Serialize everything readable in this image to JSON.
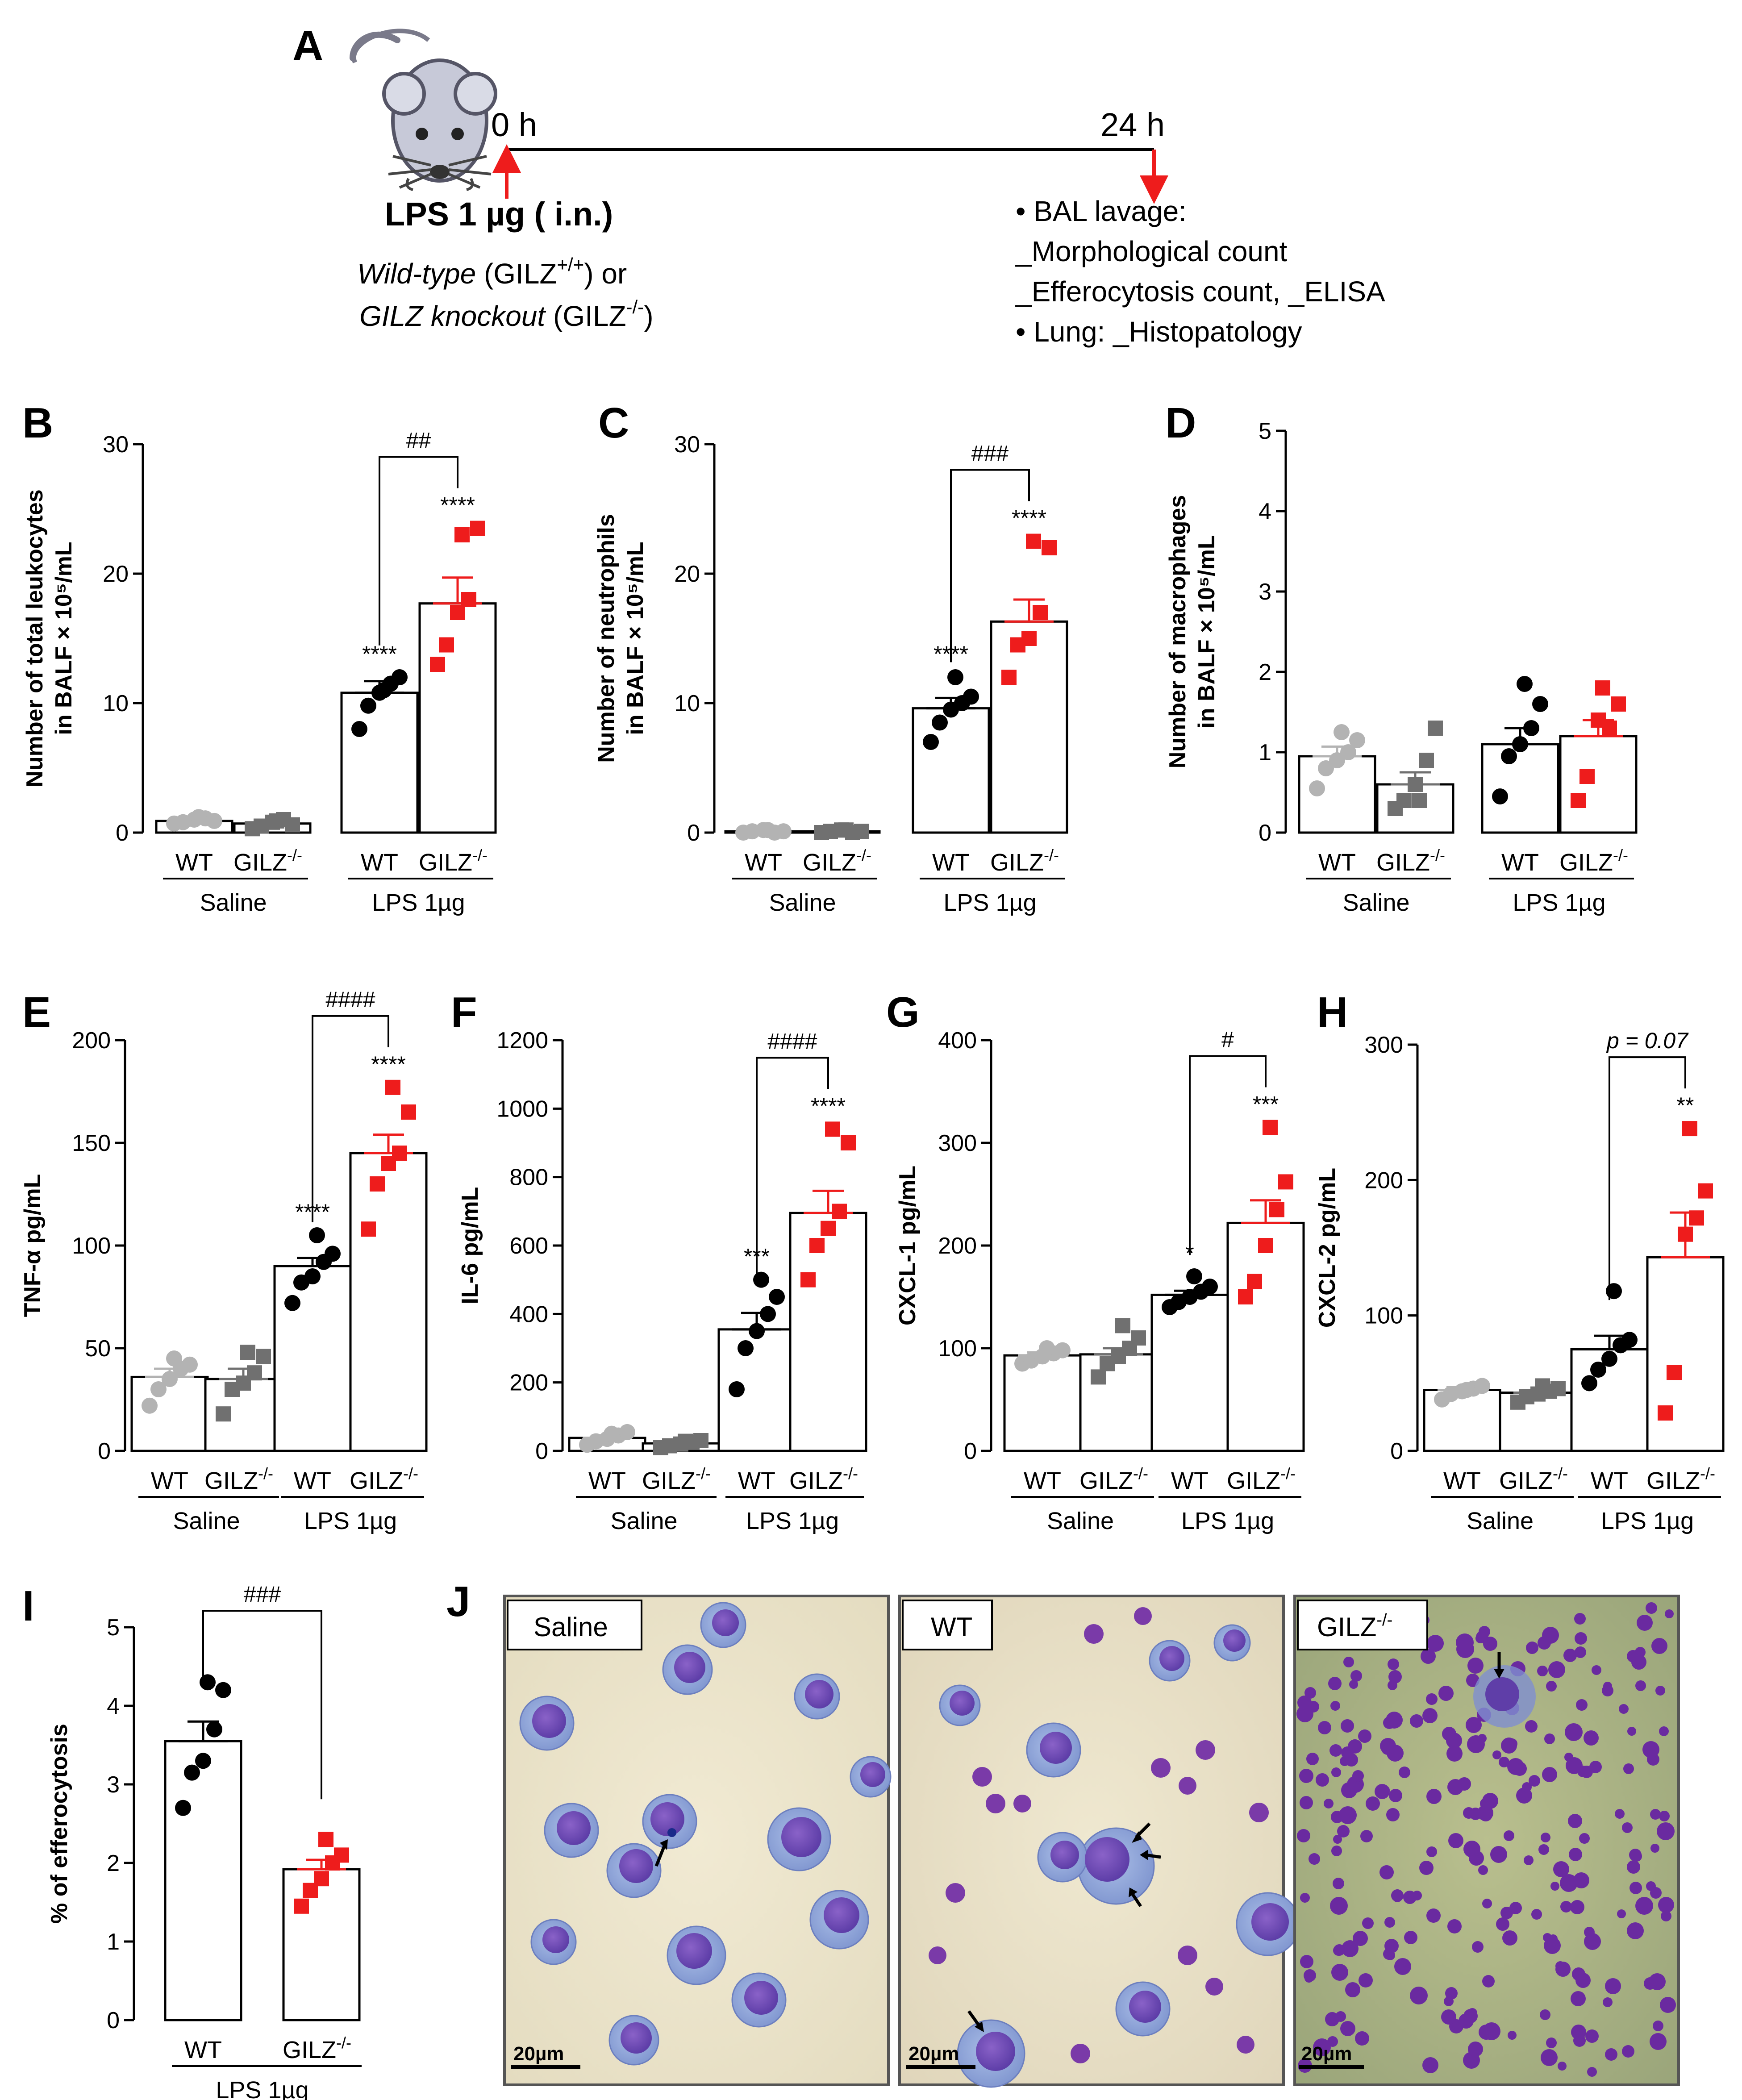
{
  "colors": {
    "wt_saline": "#b3b3b3",
    "gilz_saline": "#707070",
    "wt_lps": "#000000",
    "gilz_lps": "#ee1c1c",
    "axis": "#000000",
    "arrow_red": "#ee1c1c"
  },
  "panel_a": {
    "letter": "A",
    "t0": "0 h",
    "t24": "24 h",
    "treatment": "LPS 1 µg ( i.n.)",
    "wt_italic": "Wild-type",
    "wt_rest": " (GILZ",
    "wt_sup": "+/+",
    "wt_end": ") or",
    "ko_italic": "GILZ knockout",
    "ko_rest": " (GILZ",
    "ko_sup": "-/-",
    "ko_end": ")",
    "bullets": [
      "• BAL lavage:",
      "_Morphological count",
      "_Efferocytosis count, _ELISA",
      "• Lung: _Histopatology"
    ],
    "icon": "mouse-icon"
  },
  "groups": {
    "wt": "WT",
    "gilz": "GILZ",
    "gilz_sup": "-/-",
    "saline": "Saline",
    "lps": "LPS 1µg"
  },
  "chart_data": [
    {
      "id": "B",
      "type": "bar",
      "ylabel_line1": "Number of total leukocytes",
      "ylabel_line2": "in BALF × 10⁵/mL",
      "ylim": [
        0,
        30
      ],
      "ticks": [
        0,
        10,
        20,
        30
      ],
      "categories": [
        "WT Saline",
        "GILZ-/- Saline",
        "WT LPS 1µg",
        "GILZ-/- LPS 1µg"
      ],
      "means": [
        0.9,
        0.7,
        10.8,
        17.7
      ],
      "sem": [
        0.15,
        0.2,
        0.9,
        2.0
      ],
      "points": [
        [
          0.7,
          0.8,
          1.0,
          1.1,
          0.9,
          1.2
        ],
        [
          0.3,
          0.5,
          0.8,
          1.0,
          0.6,
          0.9
        ],
        [
          8.0,
          9.8,
          10.8,
          11.5,
          12.0,
          11.0
        ],
        [
          13.0,
          14.5,
          17.0,
          18.0,
          23.5,
          23.0
        ]
      ],
      "markers": [
        "circle",
        "square",
        "circle",
        "square"
      ],
      "stars": [
        "",
        "",
        "****",
        "****"
      ],
      "bracket_label": "##"
    },
    {
      "id": "C",
      "type": "bar",
      "ylabel_line1": "Number of neutrophils",
      "ylabel_line2": "in BALF × 10⁵/mL",
      "ylim": [
        0,
        30
      ],
      "ticks": [
        0,
        10,
        20,
        30
      ],
      "categories": [
        "WT Saline",
        "GILZ-/- Saline",
        "WT LPS 1µg",
        "GILZ-/- LPS 1µg"
      ],
      "means": [
        0.1,
        0.1,
        9.6,
        16.3
      ],
      "sem": [
        0.05,
        0.05,
        0.8,
        1.7
      ],
      "points": [
        [
          0.0,
          0.1,
          0.2,
          0.0,
          0.1,
          0.2
        ],
        [
          0.0,
          0.1,
          0.2,
          0.0,
          0.1,
          0.2
        ],
        [
          7.0,
          8.5,
          9.5,
          10.0,
          10.5,
          12.0
        ],
        [
          12.0,
          14.5,
          15.0,
          17.0,
          22.0,
          22.5
        ]
      ],
      "markers": [
        "circle",
        "square",
        "circle",
        "square"
      ],
      "stars": [
        "",
        "",
        "****",
        "****"
      ],
      "bracket_label": "###"
    },
    {
      "id": "D",
      "type": "bar",
      "ylabel_line1": "Number of macrophages",
      "ylabel_line2": "in BALF × 10⁵/mL",
      "ylim": [
        0,
        5
      ],
      "ticks": [
        0,
        1,
        2,
        3,
        4,
        5
      ],
      "categories": [
        "WT Saline",
        "GILZ-/- Saline",
        "WT LPS 1µg",
        "GILZ-/- LPS 1µg"
      ],
      "means": [
        0.95,
        0.6,
        1.1,
        1.2
      ],
      "sem": [
        0.12,
        0.15,
        0.2,
        0.2
      ],
      "points": [
        [
          0.55,
          0.8,
          0.9,
          1.0,
          1.15,
          1.25
        ],
        [
          0.3,
          0.4,
          0.6,
          0.9,
          1.3,
          0.4
        ],
        [
          0.45,
          0.95,
          1.1,
          1.3,
          1.6,
          1.85
        ],
        [
          0.4,
          0.7,
          1.4,
          1.3,
          1.6,
          1.8
        ]
      ],
      "markers": [
        "circle",
        "square",
        "circle",
        "square"
      ],
      "stars": [
        "",
        "",
        "",
        ""
      ],
      "bracket_label": ""
    },
    {
      "id": "E",
      "type": "bar",
      "ylabel_line1": "TNF-α pg/mL",
      "ylim": [
        0,
        200
      ],
      "ticks": [
        0,
        50,
        100,
        150,
        200
      ],
      "categories": [
        "WT Saline",
        "GILZ-/- Saline",
        "WT LPS 1µg",
        "GILZ-/- LPS 1µg"
      ],
      "means": [
        36,
        35,
        90,
        145
      ],
      "sem": [
        4,
        5,
        4,
        9
      ],
      "points": [
        [
          22,
          30,
          35,
          40,
          42,
          45
        ],
        [
          18,
          30,
          33,
          38,
          46,
          48
        ],
        [
          72,
          82,
          85,
          92,
          96,
          105
        ],
        [
          108,
          130,
          140,
          145,
          165,
          177
        ]
      ],
      "markers": [
        "circle",
        "square",
        "circle",
        "square"
      ],
      "stars": [
        "",
        "",
        "****",
        "****"
      ],
      "bracket_label": "####"
    },
    {
      "id": "F",
      "type": "bar",
      "ylabel_line1": "IL-6 pg/mL",
      "ylim": [
        0,
        1200
      ],
      "ticks": [
        0,
        200,
        400,
        600,
        800,
        1000,
        1200
      ],
      "categories": [
        "WT Saline",
        "GILZ-/- Saline",
        "WT LPS 1µg",
        "GILZ-/- LPS 1µg"
      ],
      "means": [
        38,
        22,
        355,
        695
      ],
      "sem": [
        8,
        5,
        48,
        65
      ],
      "points": [
        [
          18,
          28,
          35,
          45,
          55,
          50
        ],
        [
          10,
          15,
          20,
          25,
          30,
          28
        ],
        [
          180,
          300,
          350,
          400,
          450,
          500
        ],
        [
          500,
          600,
          650,
          700,
          900,
          940
        ]
      ],
      "markers": [
        "circle",
        "square",
        "circle",
        "square"
      ],
      "stars": [
        "",
        "",
        "***",
        "****"
      ],
      "bracket_label": "####"
    },
    {
      "id": "G",
      "type": "bar",
      "ylabel_line1": "CXCL-1 pg/mL",
      "ylim": [
        0,
        400
      ],
      "ticks": [
        0,
        100,
        200,
        300,
        400
      ],
      "categories": [
        "WT Saline",
        "GILZ-/- Saline",
        "WT LPS 1µg",
        "GILZ-/- LPS 1µg"
      ],
      "means": [
        93,
        94,
        152,
        222
      ],
      "sem": [
        3,
        6,
        4,
        22
      ],
      "points": [
        [
          85,
          88,
          92,
          95,
          98,
          100
        ],
        [
          72,
          85,
          92,
          100,
          110,
          122
        ],
        [
          140,
          145,
          150,
          155,
          160,
          170
        ],
        [
          150,
          165,
          200,
          235,
          262,
          315
        ]
      ],
      "markers": [
        "circle",
        "square",
        "circle",
        "square"
      ],
      "stars": [
        "",
        "",
        "*",
        "***"
      ],
      "bracket_label": "#"
    },
    {
      "id": "H",
      "type": "bar",
      "ylabel_line1": "CXCL-2 pg/mL",
      "ylim": [
        0,
        300
      ],
      "ticks": [
        0,
        100,
        200,
        300
      ],
      "categories": [
        "WT Saline",
        "GILZ-/- Saline",
        "WT LPS 1µg",
        "GILZ-/- LPS 1µg"
      ],
      "means": [
        45,
        43,
        75,
        143
      ],
      "sem": [
        2,
        2,
        10,
        33
      ],
      "points": [
        [
          38,
          42,
          44,
          46,
          48,
          45
        ],
        [
          36,
          40,
          42,
          44,
          46,
          48
        ],
        [
          50,
          60,
          68,
          78,
          82,
          118
        ],
        [
          28,
          58,
          160,
          172,
          192,
          238
        ]
      ],
      "markers": [
        "circle",
        "square",
        "circle",
        "square"
      ],
      "stars": [
        "",
        "",
        "",
        "**"
      ],
      "bracket_label": "p = 0.07"
    },
    {
      "id": "I",
      "type": "bar",
      "ylabel_line1": "% of efferocytosis",
      "ylim": [
        0,
        5
      ],
      "ticks": [
        0,
        1,
        2,
        3,
        4,
        5
      ],
      "categories": [
        "WT LPS 1µg",
        "GILZ-/- LPS 1µg"
      ],
      "means": [
        3.55,
        1.92
      ],
      "sem": [
        0.25,
        0.12
      ],
      "points": [
        [
          2.7,
          3.15,
          3.3,
          3.7,
          4.2,
          4.3
        ],
        [
          1.45,
          1.65,
          1.8,
          2.0,
          2.1,
          2.3
        ]
      ],
      "markers": [
        "circle",
        "square"
      ],
      "stars": [
        "",
        ""
      ],
      "bracket_label": "###"
    }
  ],
  "panel_j": {
    "letter": "J",
    "images": [
      {
        "label": "Saline",
        "scale": "20µm",
        "sup": ""
      },
      {
        "label": "WT",
        "scale": "20µm",
        "sup": ""
      },
      {
        "label": "GILZ",
        "scale": "20µm",
        "sup": "-/-"
      }
    ]
  }
}
